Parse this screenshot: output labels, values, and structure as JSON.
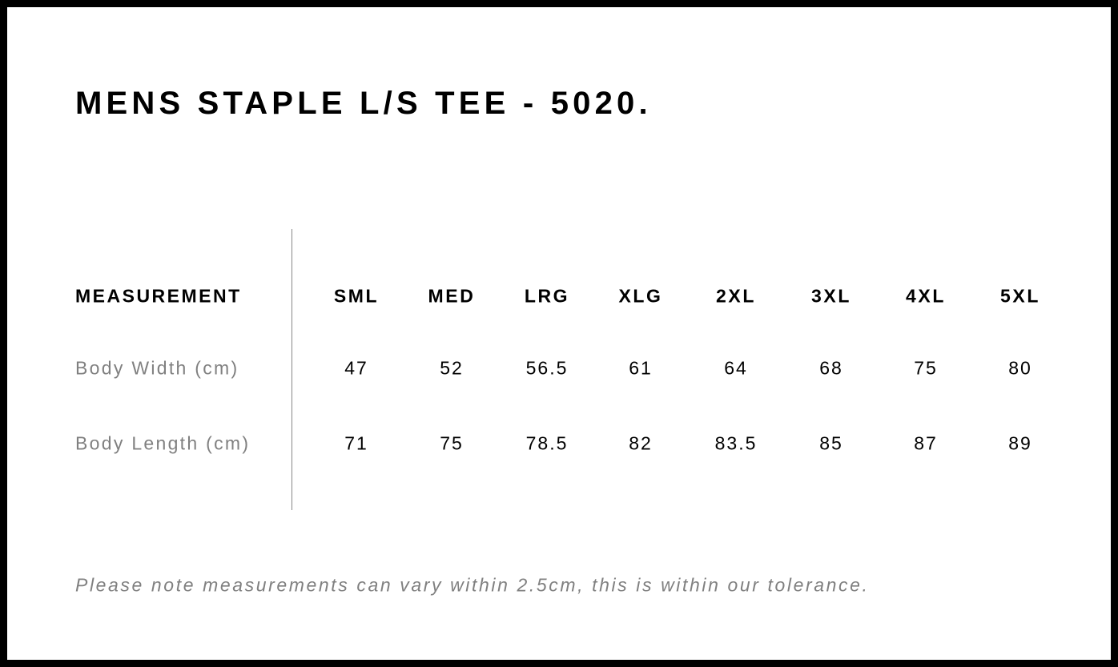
{
  "title": "MENS STAPLE L/S TEE - 5020.",
  "table": {
    "header_label": "MEASUREMENT",
    "sizes": [
      "SML",
      "MED",
      "LRG",
      "XLG",
      "2XL",
      "3XL",
      "4XL",
      "5XL"
    ],
    "rows": [
      {
        "label": "Body Width (cm)",
        "values": [
          "47",
          "52",
          "56.5",
          "61",
          "64",
          "68",
          "75",
          "80"
        ]
      },
      {
        "label": "Body Length (cm)",
        "values": [
          "71",
          "75",
          "78.5",
          "82",
          "83.5",
          "85",
          "87",
          "89"
        ]
      }
    ]
  },
  "note": "Please note measurements can vary within 2.5cm, this is within our tolerance."
}
